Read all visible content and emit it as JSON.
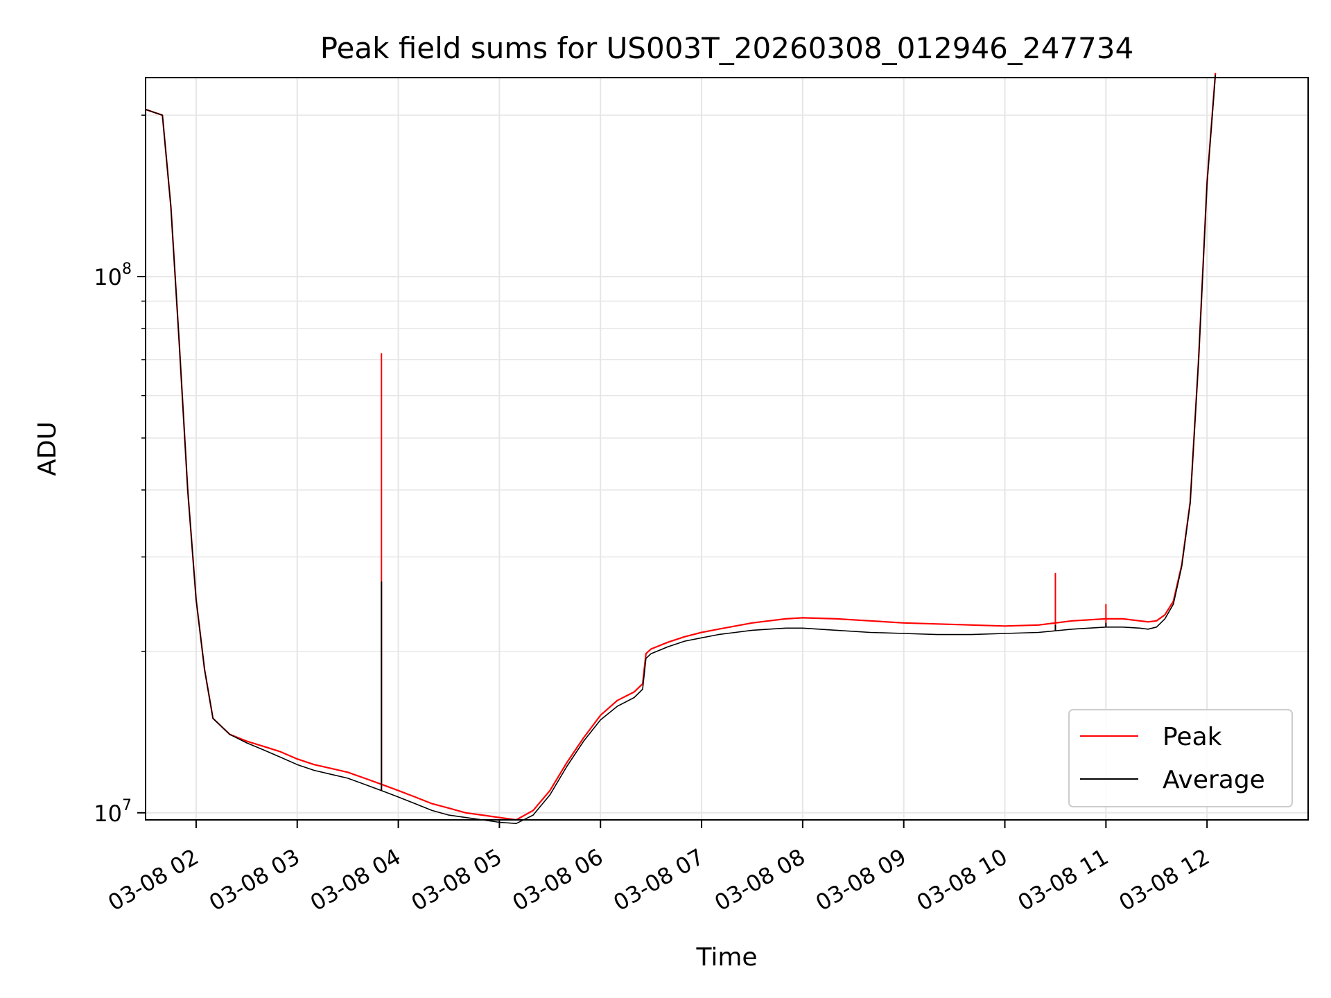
{
  "chart_data": {
    "type": "line",
    "title": "Peak field sums for US003T_20260308_012946_247734",
    "xlabel": "Time",
    "ylabel": "ADU",
    "yscale": "log",
    "xlim": [
      "03-08 01:30",
      "03-08 13:00"
    ],
    "ylim": [
      9700000,
      235000000
    ],
    "grid": true,
    "legend_position": "lower-right",
    "x_tick_labels": [
      "03-08 02",
      "03-08 03",
      "03-08 04",
      "03-08 05",
      "03-08 06",
      "03-08 07",
      "03-08 08",
      "03-08 09",
      "03-08 10",
      "03-08 11",
      "03-08 12"
    ],
    "y_tick_labels": [
      {
        "base": "10",
        "exp": "7",
        "value": 10000000
      },
      {
        "base": "10",
        "exp": "8",
        "value": 100000000
      }
    ],
    "x": [
      "01:30",
      "01:40",
      "01:45",
      "01:50",
      "01:55",
      "02:00",
      "02:05",
      "02:10",
      "02:20",
      "02:30",
      "02:40",
      "02:50",
      "03:00",
      "03:10",
      "03:20",
      "03:30",
      "03:40",
      "03:50",
      "04:00",
      "04:10",
      "04:20",
      "04:30",
      "04:40",
      "04:50",
      "05:00",
      "05:10",
      "05:20",
      "05:30",
      "05:40",
      "05:50",
      "06:00",
      "06:10",
      "06:20",
      "06:25",
      "06:27",
      "06:30",
      "06:40",
      "06:50",
      "07:00",
      "07:10",
      "07:20",
      "07:30",
      "07:40",
      "07:50",
      "08:00",
      "08:20",
      "08:40",
      "09:00",
      "09:20",
      "09:40",
      "10:00",
      "10:20",
      "10:40",
      "11:00",
      "11:10",
      "11:20",
      "11:25",
      "11:30",
      "11:35",
      "11:40",
      "11:45",
      "11:50",
      "11:55",
      "12:00",
      "12:05"
    ],
    "series": [
      {
        "name": "Peak",
        "color": "#ff0000",
        "values": [
          205000000,
          200000000,
          135000000,
          75000000,
          40000000,
          25000000,
          18500000,
          15000000,
          14000000,
          13600000,
          13300000,
          13000000,
          12600000,
          12300000,
          12100000,
          11900000,
          11600000,
          11300000,
          11000000,
          10700000,
          10400000,
          10200000,
          10000000,
          9900000,
          9800000,
          9700000,
          10100000,
          11000000,
          12400000,
          13800000,
          15200000,
          16200000,
          16800000,
          17400000,
          19800000,
          20200000,
          20800000,
          21300000,
          21700000,
          22000000,
          22300000,
          22600000,
          22800000,
          23000000,
          23100000,
          23000000,
          22800000,
          22600000,
          22500000,
          22400000,
          22300000,
          22400000,
          22800000,
          23000000,
          23000000,
          22800000,
          22700000,
          22800000,
          23400000,
          24800000,
          29000000,
          38000000,
          70000000,
          150000000,
          240000000
        ]
      },
      {
        "name": "Average",
        "color": "#000000",
        "values": [
          205000000,
          200000000,
          135000000,
          75000000,
          40000000,
          25000000,
          18500000,
          15000000,
          14000000,
          13500000,
          13100000,
          12700000,
          12300000,
          12000000,
          11800000,
          11600000,
          11300000,
          11000000,
          10700000,
          10400000,
          10100000,
          9900000,
          9800000,
          9700000,
          9600000,
          9550000,
          9900000,
          10800000,
          12200000,
          13600000,
          14900000,
          15800000,
          16400000,
          17000000,
          19400000,
          19800000,
          20400000,
          20900000,
          21200000,
          21500000,
          21700000,
          21900000,
          22000000,
          22100000,
          22100000,
          21900000,
          21700000,
          21600000,
          21500000,
          21500000,
          21600000,
          21700000,
          22000000,
          22200000,
          22200000,
          22100000,
          22000000,
          22200000,
          23000000,
          24500000,
          28800000,
          37800000,
          69800000,
          149000000,
          238000000
        ]
      }
    ],
    "annotations": [
      {
        "x": "03:50",
        "peak_value": 72000000,
        "average_value": 27000000
      },
      {
        "x": "10:30",
        "peak_value": 28000000,
        "average_value": 22400000
      },
      {
        "x": "11:00",
        "peak_value": 24500000,
        "average_value": 22600000
      }
    ]
  }
}
